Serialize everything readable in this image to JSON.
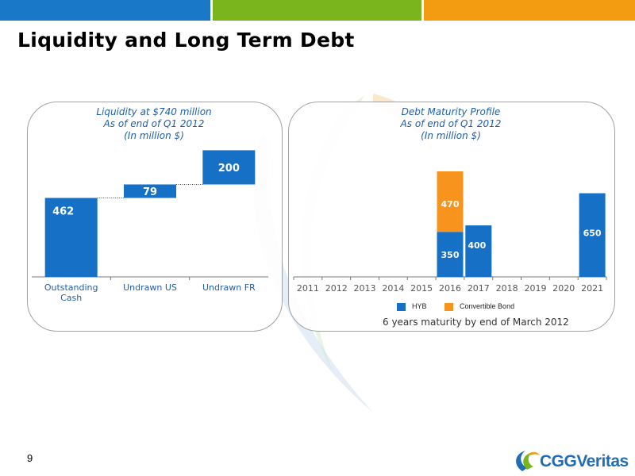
{
  "slide": {
    "title": "Liquidity and Long Term Debt",
    "page_number": "9",
    "logo_text": "CGGVeritas",
    "colors": {
      "bar_blue": "#1570c6",
      "convertible_orange": "#f7941d",
      "header_blue": "#1a78c8",
      "header_green": "#7ab51d",
      "header_orange": "#f39c12",
      "panel_title_blue": "#1f5fa8"
    }
  },
  "liquidity_panel": {
    "title_lines": [
      "Liquidity at $740 million",
      "As of end of Q1 2012",
      "(In million $)"
    ]
  },
  "debt_panel": {
    "title_lines": [
      "Debt Maturity Profile",
      "As of end of Q1 2012",
      "(In million $)"
    ],
    "note": "6 years maturity by end of March 2012"
  },
  "chart_data": [
    {
      "type": "bar",
      "subtype": "waterfall",
      "categories": [
        "Outstanding Cash",
        "Undrawn US",
        "Undrawn FR"
      ],
      "category_label_lines": [
        [
          "Outstanding",
          "Cash"
        ],
        [
          "Undrawn US"
        ],
        [
          "Undrawn FR"
        ]
      ],
      "values": [
        462,
        79,
        200
      ],
      "data_labels": [
        "462",
        "79",
        "200"
      ],
      "ylim": [
        0,
        780
      ],
      "grid": false
    },
    {
      "type": "bar",
      "subtype": "stacked",
      "categories": [
        "2011",
        "2012",
        "2013",
        "2014",
        "2015",
        "2016",
        "2017",
        "2018",
        "2019",
        "2020",
        "2021"
      ],
      "series": [
        {
          "name": "HYB",
          "color": "#1570c6",
          "values": [
            0,
            0,
            0,
            0,
            0,
            350,
            400,
            0,
            0,
            0,
            650
          ]
        },
        {
          "name": "Convertible Bond",
          "color": "#f7941d",
          "values": [
            0,
            0,
            0,
            0,
            0,
            470,
            0,
            0,
            0,
            0,
            0
          ]
        }
      ],
      "data_labels": [
        {
          "category": "2016",
          "series": "HYB",
          "text": "350"
        },
        {
          "category": "2016",
          "series": "Convertible Bond",
          "text": "470"
        },
        {
          "category": "2017",
          "series": "HYB",
          "text": "400"
        },
        {
          "category": "2021",
          "series": "HYB",
          "text": "650"
        }
      ],
      "ylim": [
        0,
        900
      ],
      "grid": false,
      "legend": "bottom"
    }
  ]
}
